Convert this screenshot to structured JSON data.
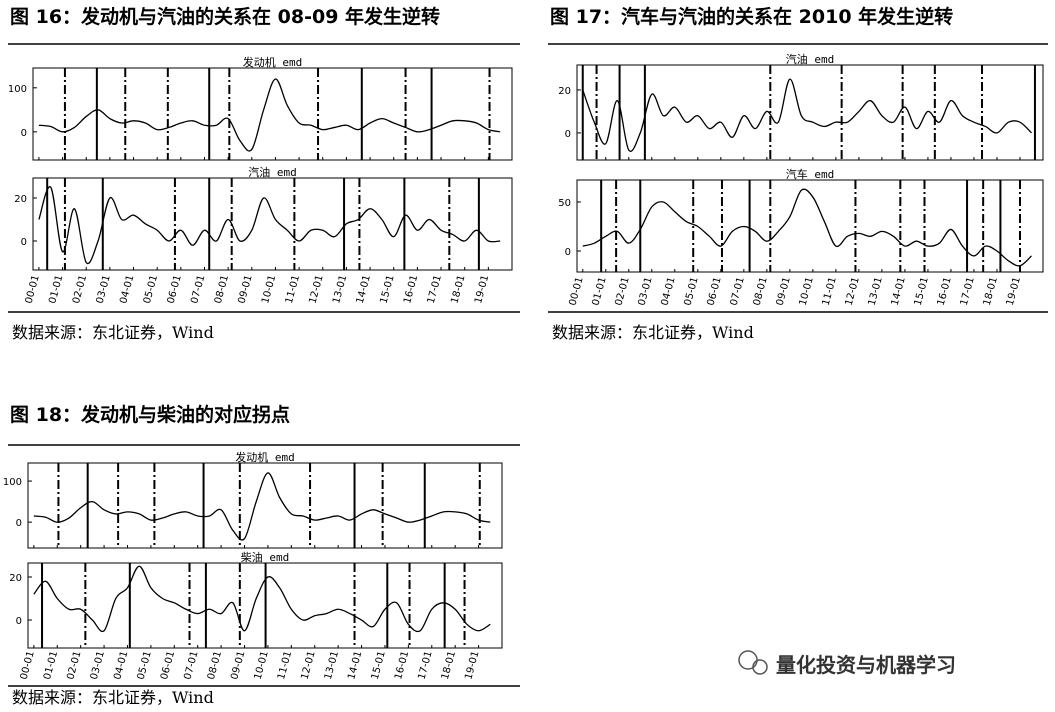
{
  "figures": [
    {
      "title": "图 16：发动机与汽油的关系在 08-09 年发生逆转",
      "source": "数据来源：东北证券，Wind",
      "charts": [
        {
          "type": "line",
          "title": "发动机_emd",
          "categories": [
            "00-01",
            null,
            "01-01",
            null,
            "02-01",
            null,
            "03-01",
            null,
            "04-01",
            null,
            "05-01",
            null,
            "06-01",
            null,
            "07-01",
            null,
            "08-01",
            null,
            "09-01",
            null,
            "10-01",
            null,
            "11-01",
            null,
            "12-01",
            null,
            "13-01",
            null,
            "14-01",
            null,
            "15-01",
            null,
            "16-01",
            null,
            "17-01",
            null,
            "18-01",
            null,
            "19-01",
            null
          ],
          "values": [
            15,
            12,
            0,
            10,
            35,
            50,
            30,
            20,
            25,
            20,
            5,
            10,
            20,
            25,
            15,
            15,
            30,
            -20,
            -40,
            50,
            120,
            60,
            20,
            15,
            5,
            10,
            15,
            5,
            20,
            30,
            20,
            10,
            0,
            5,
            15,
            25,
            25,
            20,
            5,
            0
          ],
          "ylim": [
            -64,
            145
          ],
          "yticks": [
            0,
            100
          ],
          "solid_lines": [
            4.9,
            14.4,
            27.3,
            33.2
          ],
          "dashdot_lines": [
            2.2,
            7.3,
            10.9,
            16.1,
            23.6,
            31,
            38.1
          ]
        },
        {
          "type": "line",
          "title": "汽油_emd",
          "categories": [
            "00-01",
            null,
            "01-01",
            null,
            "02-01",
            null,
            "03-01",
            null,
            "04-01",
            null,
            "05-01",
            null,
            "06-01",
            null,
            "07-01",
            null,
            "08-01",
            null,
            "09-01",
            null,
            "10-01",
            null,
            "11-01",
            null,
            "12-01",
            null,
            "13-01",
            null,
            "14-01",
            null,
            "15-01",
            null,
            "16-01",
            null,
            "17-01",
            null,
            "18-01",
            null,
            "19-01",
            null
          ],
          "values": [
            10,
            25,
            -5,
            15,
            -10,
            0,
            20,
            10,
            12,
            8,
            5,
            0,
            5,
            -2,
            5,
            0,
            10,
            0,
            5,
            20,
            10,
            5,
            0,
            5,
            5,
            2,
            8,
            10,
            15,
            10,
            2,
            12,
            5,
            10,
            5,
            3,
            0,
            5,
            0,
            0
          ],
          "ylim": [
            -13.5,
            29.3
          ],
          "yticks": [
            0,
            20
          ],
          "solid_lines": [
            0.7,
            5.4,
            14.4,
            25.8,
            30.9,
            37.2
          ],
          "dashdot_lines": [
            2.2,
            11.5,
            16.3,
            21.6,
            27.1,
            34.7
          ]
        }
      ]
    },
    {
      "title": "图 17：汽车与汽油的关系在 2010 年发生逆转",
      "source": "数据来源：东北证券，Wind",
      "charts": [
        {
          "type": "line",
          "title": "汽油_emd",
          "categories": [
            "00-01",
            null,
            "01-01",
            null,
            "02-01",
            null,
            "03-01",
            null,
            "04-01",
            null,
            "05-01",
            null,
            "06-01",
            null,
            "07-01",
            null,
            "08-01",
            null,
            "09-01",
            null,
            "10-01",
            null,
            "11-01",
            null,
            "12-01",
            null,
            "13-01",
            null,
            "14-01",
            null,
            "15-01",
            null,
            "16-01",
            null,
            "17-01",
            null,
            "18-01",
            null,
            "19-01",
            null
          ],
          "values": [
            20,
            5,
            -5,
            15,
            -8,
            0,
            18,
            8,
            12,
            5,
            8,
            2,
            5,
            -2,
            8,
            2,
            10,
            5,
            25,
            8,
            5,
            3,
            5,
            5,
            10,
            15,
            8,
            5,
            12,
            2,
            10,
            5,
            15,
            8,
            5,
            3,
            0,
            5,
            5,
            0
          ],
          "ylim": [
            -12.6,
            31.6
          ],
          "yticks": [
            0,
            20
          ],
          "solid_lines": [
            0,
            3.2,
            5.4,
            39.3
          ],
          "dashdot_lines": [
            1.2,
            16.3,
            22.5,
            27.8,
            30.6,
            34.7
          ]
        },
        {
          "type": "line",
          "title": "汽车_emd",
          "categories": [
            "00-01",
            null,
            "01-01",
            null,
            "02-01",
            null,
            "03-01",
            null,
            "04-01",
            null,
            "05-01",
            null,
            "06-01",
            null,
            "07-01",
            null,
            "08-01",
            null,
            "09-01",
            null,
            "10-01",
            null,
            "11-01",
            null,
            "12-01",
            null,
            "13-01",
            null,
            "14-01",
            null,
            "15-01",
            null,
            "16-01",
            null,
            "17-01",
            null,
            "18-01",
            null,
            "19-01",
            null
          ],
          "values": [
            5,
            8,
            15,
            20,
            8,
            22,
            45,
            50,
            40,
            30,
            25,
            15,
            5,
            20,
            25,
            20,
            10,
            20,
            35,
            62,
            55,
            30,
            5,
            15,
            18,
            15,
            20,
            15,
            5,
            10,
            5,
            8,
            22,
            5,
            -5,
            5,
            0,
            -10,
            -15,
            -5
          ],
          "ylim": [
            -21.4,
            72.4
          ],
          "yticks": [
            0,
            50
          ],
          "solid_lines": [
            1.6,
            5,
            14.5,
            33.4,
            36.3
          ],
          "dashdot_lines": [
            2.9,
            9.6,
            12.1,
            16.3,
            23.7,
            27.6,
            29.7,
            34.8,
            38
          ]
        }
      ]
    },
    {
      "title": "图 18：发动机与柴油的对应拐点",
      "source": "数据来源：东北证券，Wind",
      "charts": [
        {
          "type": "line",
          "title": "发动机_emd",
          "categories": [
            "00-01",
            null,
            "01-01",
            null,
            "02-01",
            null,
            "03-01",
            null,
            "04-01",
            null,
            "05-01",
            null,
            "06-01",
            null,
            "07-01",
            null,
            "08-01",
            null,
            "09-01",
            null,
            "10-01",
            null,
            "11-01",
            null,
            "12-01",
            null,
            "13-01",
            null,
            "14-01",
            null,
            "15-01",
            null,
            "16-01",
            null,
            "17-01",
            null,
            "18-01",
            null,
            "19-01",
            null
          ],
          "values": [
            15,
            12,
            0,
            10,
            35,
            50,
            30,
            20,
            25,
            20,
            5,
            10,
            20,
            25,
            15,
            15,
            30,
            -20,
            -40,
            50,
            120,
            60,
            20,
            15,
            5,
            10,
            15,
            5,
            20,
            30,
            20,
            10,
            0,
            5,
            15,
            25,
            25,
            20,
            5,
            0
          ],
          "ylim": [
            -63,
            144
          ],
          "yticks": [
            0,
            100
          ],
          "solid_lines": [
            4.6,
            14.5,
            27.4,
            33.4
          ],
          "dashdot_lines": [
            2.1,
            7.2,
            10.3,
            17.6,
            23.6,
            29.8,
            38.1
          ]
        },
        {
          "type": "line",
          "title": "柴油_emd",
          "categories": [
            "00-01",
            null,
            "01-01",
            null,
            "02-01",
            null,
            "03-01",
            null,
            "04-01",
            null,
            "05-01",
            null,
            "06-01",
            null,
            "07-01",
            null,
            "08-01",
            null,
            "09-01",
            null,
            "10-01",
            null,
            "11-01",
            null,
            "12-01",
            null,
            "13-01",
            null,
            "14-01",
            null,
            "15-01",
            null,
            "16-01",
            null,
            "17-01",
            null,
            "18-01",
            null,
            "19-01",
            null
          ],
          "values": [
            12,
            18,
            10,
            5,
            5,
            0,
            -5,
            10,
            15,
            25,
            15,
            10,
            8,
            5,
            3,
            5,
            3,
            8,
            -5,
            10,
            20,
            15,
            5,
            0,
            2,
            3,
            5,
            3,
            0,
            -3,
            5,
            8,
            -2,
            -5,
            5,
            8,
            5,
            -2,
            -5,
            -2
          ],
          "ylim": [
            -13,
            26.5
          ],
          "yticks": [
            0,
            20
          ],
          "solid_lines": [
            0.7,
            8.2,
            14.7,
            19.8,
            30.2,
            35.1
          ],
          "dashdot_lines": [
            4.4,
            13.3,
            17.6,
            27.4,
            32.1,
            36.8
          ]
        }
      ]
    }
  ],
  "watermark": "量化投资与机器学习"
}
